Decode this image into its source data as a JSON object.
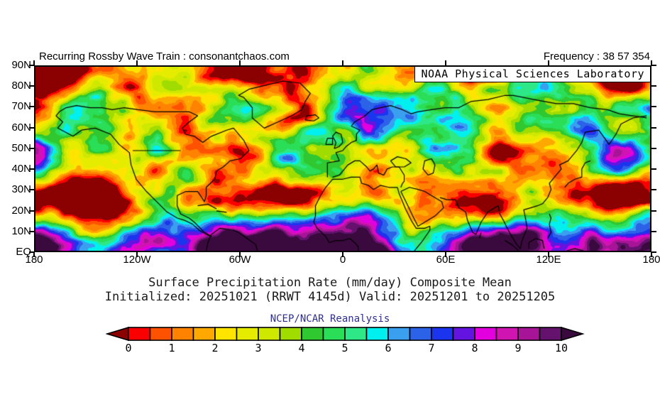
{
  "header": {
    "left": "Recurring Rossby Wave Train : consonantchaos.com",
    "right": "Frequency : 38 57 354"
  },
  "map": {
    "banner": "NOAA Physical Sciences Laboratory",
    "lat_labels": [
      "90N",
      "80N",
      "70N",
      "60N",
      "50N",
      "40N",
      "30N",
      "20N",
      "10N",
      "EQ"
    ],
    "lon_labels": [
      "180",
      "120W",
      "60W",
      "0",
      "60E",
      "120E",
      "180"
    ]
  },
  "titles": {
    "line1": "Surface Precipitation Rate (mm/day) Composite Mean",
    "line2": "Initialized: 20251021 (RRWT 4145d) Valid: 20251201 to 20251205",
    "credit": "NCEP/NCAR Reanalysis",
    "credit_color": "#2e2e8f"
  },
  "colorbar": {
    "labels": [
      "0",
      "1",
      "2",
      "3",
      "4",
      "5",
      "6",
      "7",
      "8",
      "9",
      "10"
    ],
    "arrow_low_color": "#8b0000",
    "arrow_high_color": "#3a0a3e",
    "segment_colors": [
      "#fb0000",
      "#ff5200",
      "#ff8200",
      "#ffa800",
      "#ffe400",
      "#e6ec00",
      "#cfe800",
      "#a0dc00",
      "#30c830",
      "#2ade57",
      "#2ee887",
      "#00f0f0",
      "#3b9ff0",
      "#2b62e8",
      "#1b35ee",
      "#6414e0",
      "#e200de",
      "#cf14b2",
      "#a81498",
      "#64126e"
    ]
  },
  "chart_data": {
    "type": "heatmap",
    "title": "Surface Precipitation Rate (mm/day) Composite Mean",
    "subtitle": "Initialized: 20251021 (RRWT 4145d) Valid: 20251201 to 20251205",
    "source": "NCEP/NCAR Reanalysis",
    "variable": "Surface Precipitation Rate",
    "units": "mm/day",
    "lon_range": [
      -180,
      180
    ],
    "lat_range": [
      0,
      90
    ],
    "x_ticks": [
      "180",
      "120W",
      "60W",
      "0",
      "60E",
      "120E",
      "180"
    ],
    "y_ticks": [
      "EQ",
      "10N",
      "20N",
      "30N",
      "40N",
      "50N",
      "60N",
      "70N",
      "80N",
      "90N"
    ],
    "levels": [
      0,
      0.5,
      1,
      1.5,
      2,
      2.5,
      3,
      3.5,
      4,
      4.5,
      5,
      5.5,
      6,
      6.5,
      7,
      7.5,
      8,
      8.5,
      9,
      9.5,
      10
    ],
    "palette_below": "#8b0000",
    "palette": [
      "#fb0000",
      "#ff5200",
      "#ff8200",
      "#ffa800",
      "#ffe400",
      "#e6ec00",
      "#cfe800",
      "#a0dc00",
      "#30c830",
      "#2ade57",
      "#2ee887",
      "#00f0f0",
      "#3b9ff0",
      "#2b62e8",
      "#1b35ee",
      "#6414e0",
      "#e200de",
      "#cf14b2",
      "#a81498",
      "#64126e"
    ],
    "palette_above": "#3a0a3e",
    "legend_position": "bottom",
    "grid": false
  }
}
